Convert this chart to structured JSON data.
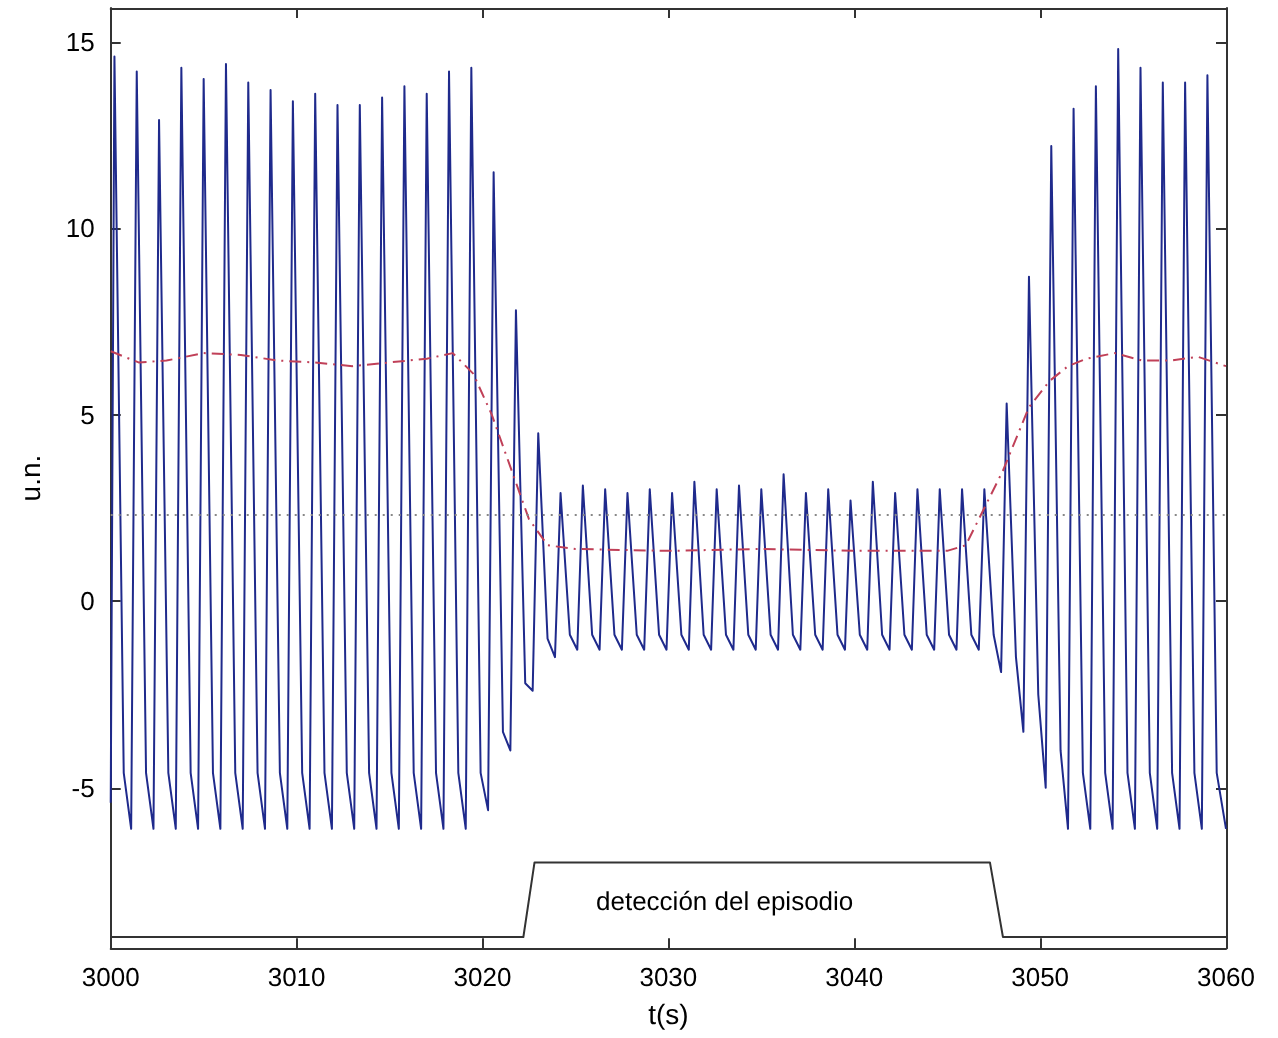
{
  "chart_data": {
    "type": "line",
    "xlabel": "t(s)",
    "ylabel": "u.n.",
    "xlim": [
      3000,
      3060
    ],
    "xticks": [
      3000,
      3010,
      3020,
      3030,
      3040,
      3050,
      3060
    ],
    "ylim": [
      -9.3,
      15.9
    ],
    "yticks": [
      -5,
      0,
      5,
      10,
      15
    ],
    "grid": false,
    "marker": "none",
    "series": [
      {
        "color": "#1f2a8c",
        "line_style": "solid",
        "x": [
          3000.0,
          3000.2,
          3000.7,
          3001.1,
          3001.4,
          3001.9,
          3002.3,
          3002.6,
          3003.1,
          3003.5,
          3003.8,
          3004.3,
          3004.7,
          3005.0,
          3005.5,
          3005.9,
          3006.2,
          3006.7,
          3007.1,
          3007.4,
          3007.9,
          3008.3,
          3008.6,
          3009.1,
          3009.5,
          3009.8,
          3010.3,
          3010.7,
          3011.0,
          3011.5,
          3011.9,
          3012.2,
          3012.7,
          3013.1,
          3013.4,
          3013.9,
          3014.3,
          3014.6,
          3015.1,
          3015.5,
          3015.8,
          3016.3,
          3016.7,
          3017.0,
          3017.5,
          3017.9,
          3018.2,
          3018.7,
          3019.1,
          3019.4,
          3019.9,
          3020.3,
          3020.6,
          3021.1,
          3021.5,
          3021.8,
          3022.3,
          3022.7,
          3023.0,
          3023.5,
          3023.9,
          3024.2,
          3024.7,
          3025.1,
          3025.4,
          3025.9,
          3026.3,
          3026.6,
          3027.1,
          3027.5,
          3027.8,
          3028.3,
          3028.7,
          3029.0,
          3029.5,
          3029.9,
          3030.2,
          3030.7,
          3031.1,
          3031.4,
          3031.9,
          3032.3,
          3032.6,
          3033.1,
          3033.5,
          3033.8,
          3034.3,
          3034.7,
          3035.0,
          3035.5,
          3035.9,
          3036.2,
          3036.7,
          3037.1,
          3037.4,
          3037.9,
          3038.3,
          3038.6,
          3039.1,
          3039.5,
          3039.8,
          3040.3,
          3040.7,
          3041.0,
          3041.5,
          3041.9,
          3042.2,
          3042.7,
          3043.1,
          3043.4,
          3043.9,
          3044.3,
          3044.6,
          3045.1,
          3045.5,
          3045.8,
          3046.3,
          3046.7,
          3047.0,
          3047.5,
          3047.9,
          3048.2,
          3048.7,
          3049.1,
          3049.4,
          3049.9,
          3050.3,
          3050.6,
          3051.1,
          3051.5,
          3051.8,
          3052.3,
          3052.7,
          3053.0,
          3053.5,
          3053.9,
          3054.2,
          3054.7,
          3055.1,
          3055.4,
          3055.9,
          3056.3,
          3056.6,
          3057.1,
          3057.5,
          3057.8,
          3058.3,
          3058.7,
          3059.0,
          3059.5,
          3060.0
        ],
        "values": [
          -5.4,
          14.6,
          -4.6,
          -6.1,
          14.2,
          -4.6,
          -6.1,
          12.9,
          -4.6,
          -6.1,
          14.3,
          -4.6,
          -6.1,
          14.0,
          -4.6,
          -6.1,
          14.4,
          -4.6,
          -6.1,
          13.9,
          -4.6,
          -6.1,
          13.7,
          -4.6,
          -6.1,
          13.4,
          -4.6,
          -6.1,
          13.6,
          -4.6,
          -6.1,
          13.3,
          -4.6,
          -6.1,
          13.3,
          -4.6,
          -6.1,
          13.5,
          -4.6,
          -6.1,
          13.8,
          -4.6,
          -6.1,
          13.6,
          -4.6,
          -6.1,
          14.2,
          -4.6,
          -6.1,
          14.3,
          -4.6,
          -5.6,
          11.5,
          -3.5,
          -4.0,
          7.8,
          -2.2,
          -2.4,
          4.5,
          -1.0,
          -1.5,
          2.9,
          -0.9,
          -1.3,
          3.1,
          -0.9,
          -1.3,
          3.0,
          -0.9,
          -1.3,
          2.9,
          -0.9,
          -1.3,
          3.0,
          -0.9,
          -1.3,
          2.9,
          -0.9,
          -1.3,
          3.2,
          -0.9,
          -1.3,
          3.0,
          -0.9,
          -1.3,
          3.1,
          -0.9,
          -1.3,
          3.0,
          -0.9,
          -1.3,
          3.4,
          -0.9,
          -1.3,
          2.9,
          -0.9,
          -1.3,
          3.0,
          -0.9,
          -1.3,
          2.7,
          -0.9,
          -1.3,
          3.2,
          -0.9,
          -1.3,
          2.9,
          -0.9,
          -1.3,
          3.0,
          -0.9,
          -1.3,
          3.0,
          -0.9,
          -1.3,
          3.0,
          -0.9,
          -1.3,
          3.0,
          -0.9,
          -1.9,
          5.3,
          -1.5,
          -3.5,
          8.7,
          -2.5,
          -5.0,
          12.2,
          -4.0,
          -6.1,
          13.2,
          -4.6,
          -6.1,
          13.8,
          -4.6,
          -6.1,
          14.8,
          -4.6,
          -6.1,
          14.3,
          -4.6,
          -6.1,
          13.9,
          -4.6,
          -6.1,
          13.9,
          -4.6,
          -6.1,
          14.1,
          -4.6,
          -6.1
        ]
      },
      {
        "color": "#c04058",
        "line_style": "dashed",
        "x": [
          3000,
          3001.5,
          3003,
          3005,
          3007,
          3009,
          3011,
          3013,
          3015,
          3017,
          3018.4,
          3019.5,
          3020.5,
          3021.5,
          3022.5,
          3023.5,
          3025,
          3030,
          3035,
          3040,
          3045,
          3046,
          3047,
          3048,
          3049.4,
          3050.5,
          3051.5,
          3052.5,
          3054,
          3055.5,
          3057,
          3058.5,
          3060
        ],
        "values": [
          6.7,
          6.4,
          6.45,
          6.65,
          6.6,
          6.45,
          6.4,
          6.3,
          6.4,
          6.5,
          6.65,
          6.1,
          5.0,
          3.6,
          2.2,
          1.5,
          1.4,
          1.35,
          1.4,
          1.35,
          1.35,
          1.5,
          2.5,
          3.5,
          5.2,
          5.9,
          6.3,
          6.5,
          6.65,
          6.45,
          6.45,
          6.55,
          6.3
        ]
      },
      {
        "color": "#333333",
        "line_style": "solid",
        "x": [
          3000,
          3022.2,
          3022.8,
          3047.3,
          3048,
          3060
        ],
        "values": [
          -9,
          -9,
          -7,
          -7,
          -9,
          -9
        ]
      }
    ],
    "ref_lines": [
      {
        "axis": "y",
        "value": 2.3,
        "color": "#888888",
        "line_style": "dotted"
      }
    ],
    "annotations": [
      "detección del episodio"
    ]
  }
}
